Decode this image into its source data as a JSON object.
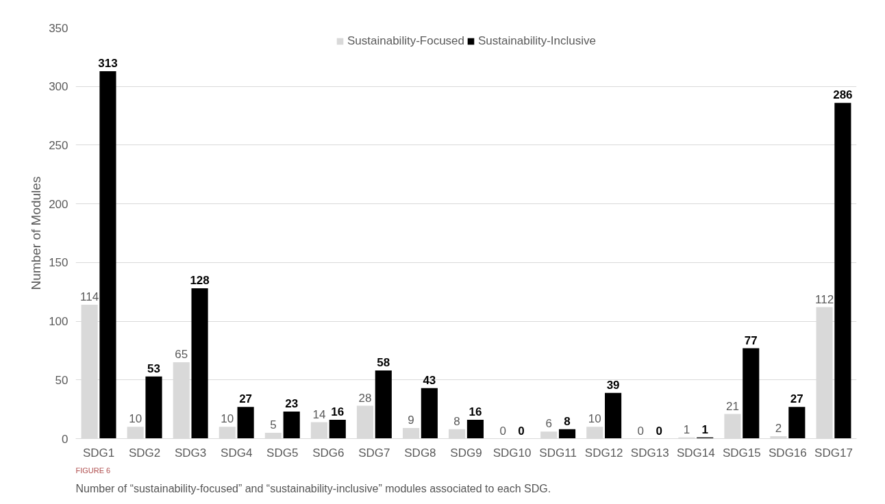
{
  "chart_data": {
    "type": "bar",
    "ylabel": "Number of Modules",
    "categories": [
      "SDG1",
      "SDG2",
      "SDG3",
      "SDG4",
      "SDG5",
      "SDG6",
      "SDG7",
      "SDG8",
      "SDG9",
      "SDG10",
      "SDG11",
      "SDG12",
      "SDG13",
      "SDG14",
      "SDG15",
      "SDG16",
      "SDG17"
    ],
    "series": [
      {
        "name": "Sustainability-Focused",
        "color": "#d9d9d9",
        "values": [
          114,
          10,
          65,
          10,
          5,
          14,
          28,
          9,
          8,
          0,
          6,
          10,
          0,
          1,
          21,
          2,
          112
        ]
      },
      {
        "name": "Sustainability-Inclusive",
        "color": "#000000",
        "values": [
          313,
          53,
          128,
          27,
          23,
          16,
          58,
          43,
          16,
          0,
          8,
          39,
          0,
          1,
          77,
          27,
          286
        ]
      }
    ],
    "ylim": [
      0,
      350
    ],
    "yticks": [
      0,
      50,
      100,
      150,
      200,
      250,
      300,
      350
    ],
    "grid": "y",
    "legend": "top",
    "data_labels": true,
    "annotations": [
      "FIGURE 6",
      "Number of “sustainability-focused” and “sustainability-inclusive” modules associated to each SDG."
    ]
  }
}
